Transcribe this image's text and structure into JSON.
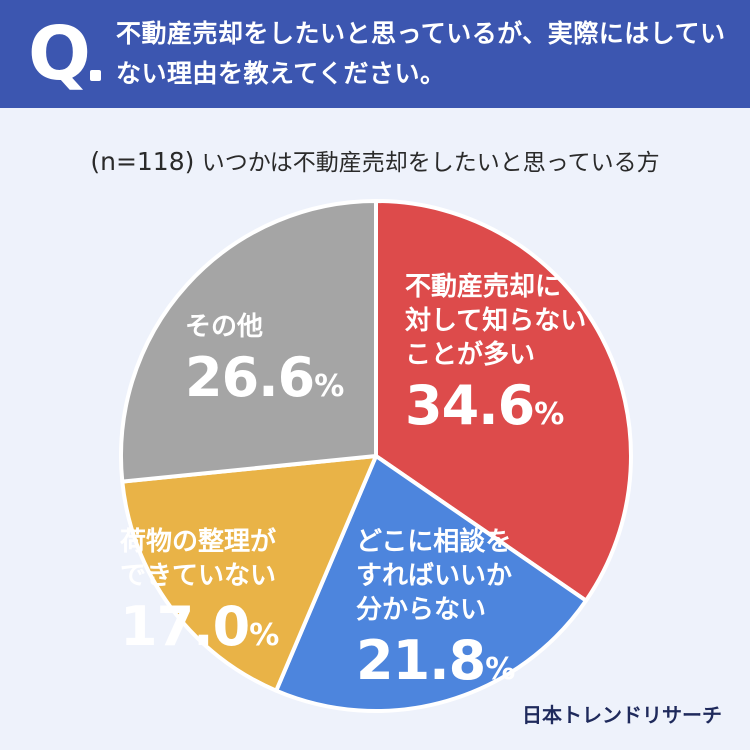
{
  "header": {
    "q_mark": "Q",
    "question": "不動産売却をしたいと思っているが、実際にはしていない理由を教えてください。"
  },
  "subtitle": {
    "sample": "(n=118)",
    "text": "いつかは不動産売却をしたいと思っている方"
  },
  "chart_data": {
    "type": "pie",
    "start_angle_deg": 0,
    "direction": "clockwise",
    "slices": [
      {
        "label_lines": [
          "不動産売却に",
          "対して知らない",
          "ことが多い"
        ],
        "value": 34.6,
        "display": "34.6",
        "color": "#dd4b4b"
      },
      {
        "label_lines": [
          "どこに相談を",
          "すればいいか",
          "分からない"
        ],
        "value": 21.8,
        "display": "21.8",
        "color": "#4d85dd"
      },
      {
        "label_lines": [
          "荷物の整理が",
          "できていない"
        ],
        "value": 17.0,
        "display": "17.0",
        "color": "#e9b347"
      },
      {
        "label_lines": [
          "その他"
        ],
        "value": 26.6,
        "display": "26.6",
        "color": "#a5a5a5"
      }
    ],
    "unit": "%"
  },
  "footer": {
    "logo": "日本トレンドリサーチ"
  }
}
